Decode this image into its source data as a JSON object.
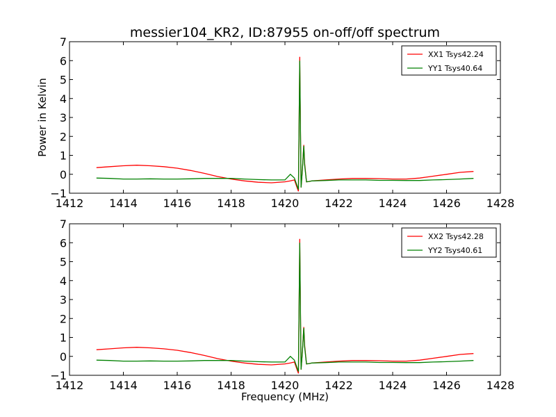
{
  "chart_data": [
    {
      "type": "line",
      "title": "messier104_KR2, ID:87955 on-off/off spectrum",
      "xlabel": "",
      "ylabel": "Power in Kelvin",
      "xlim": [
        1412,
        1428
      ],
      "ylim": [
        -1,
        7
      ],
      "xticks": [
        "1412",
        "1414",
        "1416",
        "1418",
        "1420",
        "1422",
        "1424",
        "1426",
        "1428"
      ],
      "yticks": [
        "−1",
        "0",
        "1",
        "2",
        "3",
        "4",
        "5",
        "6",
        "7"
      ],
      "legend_position": "top-right",
      "series": [
        {
          "name": "XX1 Tsys42.24",
          "color": "#ff0000",
          "x": [
            1413.0,
            1413.5,
            1414.0,
            1414.5,
            1415.0,
            1415.5,
            1416.0,
            1416.5,
            1417.0,
            1417.5,
            1418.0,
            1418.5,
            1419.0,
            1419.5,
            1420.0,
            1420.2,
            1420.35,
            1420.45,
            1420.5,
            1420.55,
            1420.6,
            1420.65,
            1420.7,
            1420.73,
            1420.8,
            1420.9,
            1421.0,
            1421.5,
            1422.0,
            1422.5,
            1423.0,
            1423.5,
            1424.0,
            1424.5,
            1425.0,
            1425.5,
            1426.0,
            1426.5,
            1427.0
          ],
          "y": [
            0.35,
            0.4,
            0.45,
            0.48,
            0.45,
            0.4,
            0.32,
            0.2,
            0.05,
            -0.12,
            -0.25,
            -0.35,
            -0.42,
            -0.45,
            -0.4,
            -0.35,
            -0.3,
            -0.7,
            -0.9,
            6.2,
            -0.7,
            0.3,
            1.55,
            0.6,
            -0.4,
            -0.38,
            -0.35,
            -0.3,
            -0.25,
            -0.22,
            -0.22,
            -0.23,
            -0.25,
            -0.25,
            -0.2,
            -0.1,
            0.0,
            0.1,
            0.15
          ]
        },
        {
          "name": "YY1 Tsys40.64",
          "color": "#008000",
          "x": [
            1413.0,
            1413.5,
            1414.0,
            1414.5,
            1415.0,
            1415.5,
            1416.0,
            1416.5,
            1417.0,
            1417.5,
            1418.0,
            1418.5,
            1419.0,
            1419.5,
            1420.0,
            1420.2,
            1420.35,
            1420.45,
            1420.5,
            1420.55,
            1420.6,
            1420.65,
            1420.7,
            1420.73,
            1420.8,
            1420.9,
            1421.0,
            1421.5,
            1422.0,
            1422.5,
            1423.0,
            1423.5,
            1424.0,
            1424.5,
            1425.0,
            1425.5,
            1426.0,
            1426.5,
            1427.0
          ],
          "y": [
            -0.2,
            -0.22,
            -0.25,
            -0.25,
            -0.24,
            -0.25,
            -0.25,
            -0.24,
            -0.22,
            -0.22,
            -0.22,
            -0.25,
            -0.28,
            -0.3,
            -0.3,
            0.0,
            -0.2,
            -0.6,
            -0.8,
            6.0,
            -0.7,
            0.3,
            1.5,
            0.5,
            -0.4,
            -0.38,
            -0.35,
            -0.33,
            -0.3,
            -0.3,
            -0.3,
            -0.32,
            -0.32,
            -0.33,
            -0.33,
            -0.3,
            -0.28,
            -0.25,
            -0.22
          ]
        }
      ]
    },
    {
      "type": "line",
      "title": "",
      "xlabel": "Frequency (MHz)",
      "ylabel": "",
      "xlim": [
        1412,
        1428
      ],
      "ylim": [
        -1,
        7
      ],
      "xticks": [
        "1412",
        "1414",
        "1416",
        "1418",
        "1420",
        "1422",
        "1424",
        "1426",
        "1428"
      ],
      "yticks": [
        "−1",
        "0",
        "1",
        "2",
        "3",
        "4",
        "5",
        "6",
        "7"
      ],
      "legend_position": "top-right",
      "series": [
        {
          "name": "XX2 Tsys42.28",
          "color": "#ff0000",
          "x": [
            1413.0,
            1413.5,
            1414.0,
            1414.5,
            1415.0,
            1415.5,
            1416.0,
            1416.5,
            1417.0,
            1417.5,
            1418.0,
            1418.5,
            1419.0,
            1419.5,
            1420.0,
            1420.2,
            1420.35,
            1420.45,
            1420.5,
            1420.55,
            1420.6,
            1420.65,
            1420.7,
            1420.73,
            1420.8,
            1420.9,
            1421.0,
            1421.5,
            1422.0,
            1422.5,
            1423.0,
            1423.5,
            1424.0,
            1424.5,
            1425.0,
            1425.5,
            1426.0,
            1426.5,
            1427.0
          ],
          "y": [
            0.35,
            0.4,
            0.45,
            0.48,
            0.45,
            0.4,
            0.32,
            0.2,
            0.05,
            -0.12,
            -0.25,
            -0.35,
            -0.42,
            -0.45,
            -0.4,
            -0.35,
            -0.3,
            -0.7,
            -0.9,
            6.2,
            -0.7,
            0.3,
            1.55,
            0.6,
            -0.4,
            -0.38,
            -0.35,
            -0.3,
            -0.25,
            -0.22,
            -0.22,
            -0.23,
            -0.25,
            -0.25,
            -0.2,
            -0.1,
            0.0,
            0.1,
            0.15
          ]
        },
        {
          "name": "YY2 Tsys40.61",
          "color": "#008000",
          "x": [
            1413.0,
            1413.5,
            1414.0,
            1414.5,
            1415.0,
            1415.5,
            1416.0,
            1416.5,
            1417.0,
            1417.5,
            1418.0,
            1418.5,
            1419.0,
            1419.5,
            1420.0,
            1420.2,
            1420.35,
            1420.45,
            1420.5,
            1420.55,
            1420.6,
            1420.65,
            1420.7,
            1420.73,
            1420.8,
            1420.9,
            1421.0,
            1421.5,
            1422.0,
            1422.5,
            1423.0,
            1423.5,
            1424.0,
            1424.5,
            1425.0,
            1425.5,
            1426.0,
            1426.5,
            1427.0
          ],
          "y": [
            -0.2,
            -0.22,
            -0.25,
            -0.25,
            -0.24,
            -0.25,
            -0.25,
            -0.24,
            -0.22,
            -0.22,
            -0.22,
            -0.25,
            -0.28,
            -0.3,
            -0.3,
            0.0,
            -0.2,
            -0.6,
            -0.8,
            6.0,
            -0.7,
            0.3,
            1.5,
            0.5,
            -0.4,
            -0.38,
            -0.35,
            -0.33,
            -0.3,
            -0.3,
            -0.3,
            -0.32,
            -0.32,
            -0.33,
            -0.33,
            -0.3,
            -0.28,
            -0.25,
            -0.22
          ]
        }
      ]
    }
  ]
}
